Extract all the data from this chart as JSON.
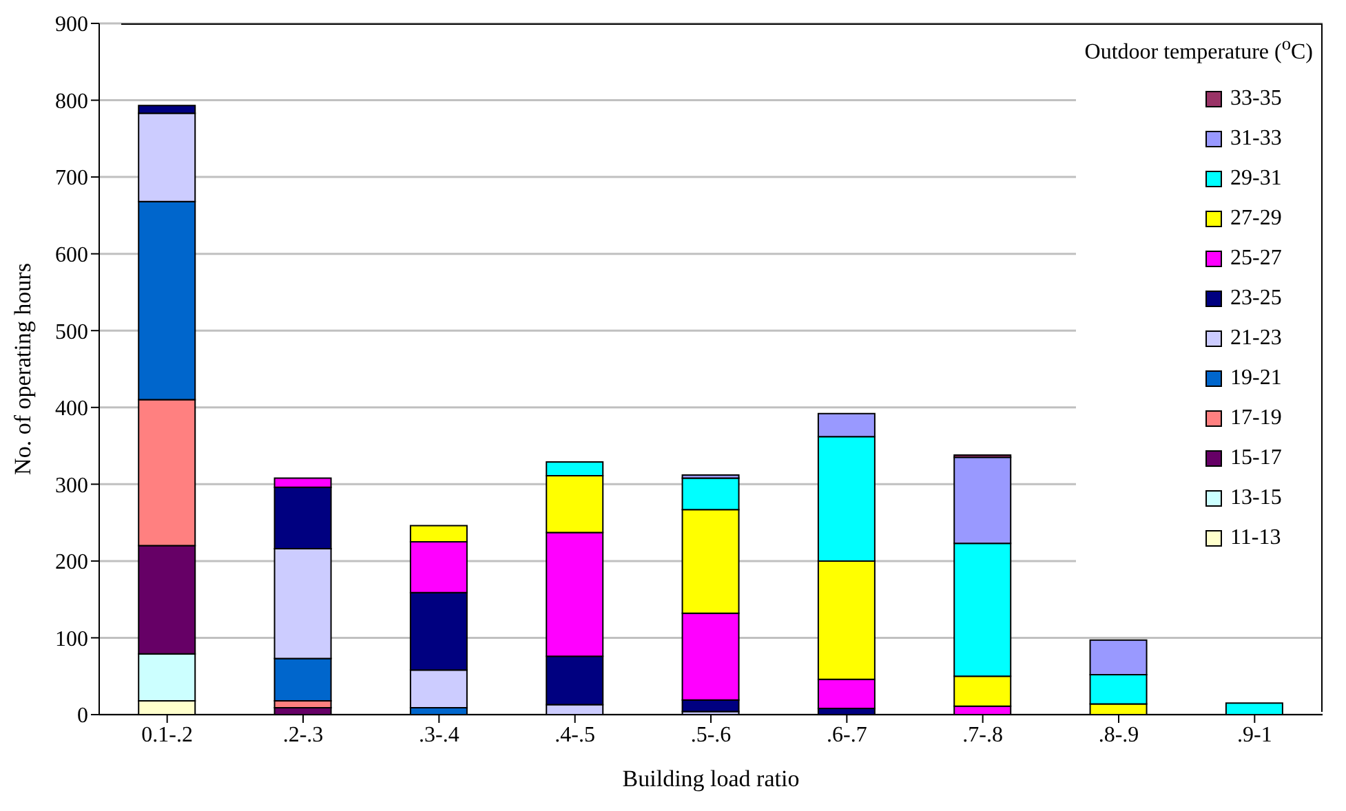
{
  "chart_data": {
    "type": "bar",
    "stacked": true,
    "xlabel": "Building load ratio",
    "ylabel": "No. of operating hours",
    "legend_title": "Outdoor temperature ($^{o}$C)",
    "legend": "top right",
    "grid": "y",
    "categories": [
      "0.1-.2",
      ".2-.3",
      ".3-.4",
      ".4-.5",
      ".5-.6",
      ".6-.7",
      ".7-.8",
      ".8-.9",
      ".9-1"
    ],
    "ylim": [
      0,
      900
    ],
    "yticks": [
      0,
      100,
      200,
      300,
      400,
      500,
      600,
      700,
      800,
      900
    ],
    "series": [
      {
        "name": "11-13",
        "color": "#ffffcc",
        "values": [
          18,
          0,
          0,
          0,
          0,
          0,
          0,
          0,
          0
        ]
      },
      {
        "name": "13-15",
        "color": "#ccffff",
        "values": [
          61,
          0,
          0,
          0,
          0,
          0,
          0,
          0,
          0
        ]
      },
      {
        "name": "15-17",
        "color": "#660066",
        "values": [
          141,
          9,
          0,
          0,
          0,
          0,
          0,
          0,
          0
        ]
      },
      {
        "name": "17-19",
        "color": "#ff8080",
        "values": [
          190,
          9,
          0,
          0,
          0,
          0,
          0,
          0,
          0
        ]
      },
      {
        "name": "19-21",
        "color": "#0066cc",
        "values": [
          258,
          55,
          9,
          0,
          0,
          0,
          0,
          0,
          0
        ]
      },
      {
        "name": "21-23",
        "color": "#ccccff",
        "values": [
          115,
          143,
          49,
          13,
          4,
          0,
          0,
          0,
          0
        ]
      },
      {
        "name": "23-25",
        "color": "#000080",
        "values": [
          10,
          80,
          101,
          63,
          15,
          8,
          0,
          0,
          0
        ]
      },
      {
        "name": "25-27",
        "color": "#ff00ff",
        "values": [
          0,
          12,
          66,
          161,
          113,
          38,
          11,
          0,
          0
        ]
      },
      {
        "name": "27-29",
        "color": "#ffff00",
        "values": [
          0,
          0,
          21,
          74,
          135,
          154,
          39,
          14,
          0
        ]
      },
      {
        "name": "29-31",
        "color": "#00ffff",
        "values": [
          0,
          0,
          0,
          18,
          41,
          162,
          173,
          38,
          15
        ]
      },
      {
        "name": "31-33",
        "color": "#9999ff",
        "values": [
          0,
          0,
          0,
          0,
          4,
          30,
          112,
          45,
          0
        ]
      },
      {
        "name": "33-35",
        "color": "#993366",
        "values": [
          0,
          0,
          0,
          0,
          0,
          0,
          3,
          0,
          0
        ]
      }
    ]
  }
}
